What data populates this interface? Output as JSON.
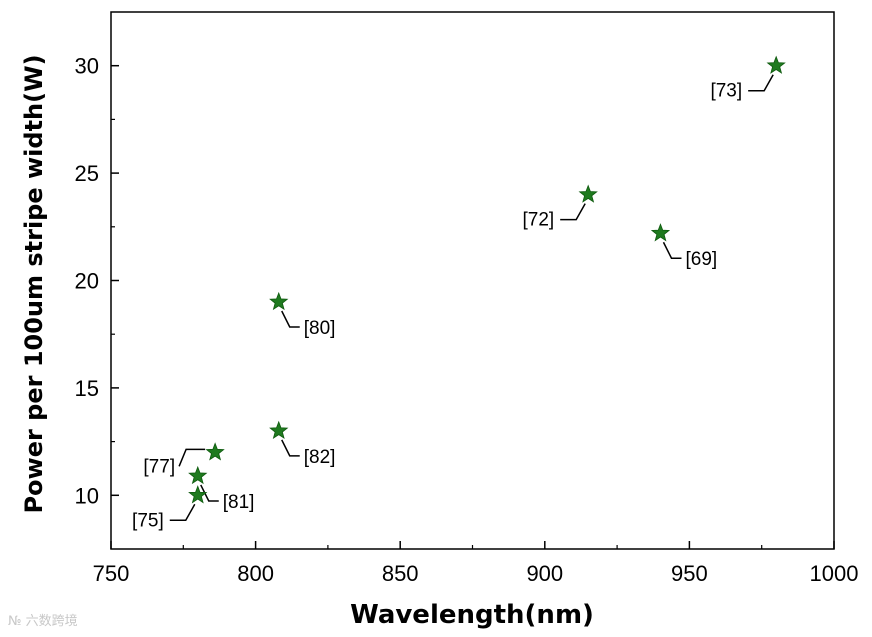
{
  "chart_data": {
    "type": "scatter",
    "xlabel": "Wavelength(nm)",
    "ylabel": "Power per 100um stripe width(W)",
    "xlim": [
      750,
      1000
    ],
    "ylim": [
      7.5,
      32.5
    ],
    "xticks": [
      750,
      800,
      850,
      900,
      950,
      1000
    ],
    "yticks": [
      10,
      15,
      20,
      25,
      30
    ],
    "grid": false,
    "legend": "none",
    "marker": "star",
    "marker_color": "#1f7a1f",
    "points": [
      {
        "x": 980,
        "y": 30,
        "label": "[73]",
        "label_side": "lower-left"
      },
      {
        "x": 915,
        "y": 24,
        "label": "[72]",
        "label_side": "lower-left"
      },
      {
        "x": 940,
        "y": 22.2,
        "label": "[69]",
        "label_side": "lower-right"
      },
      {
        "x": 808,
        "y": 19,
        "label": "[80]",
        "label_side": "lower-right"
      },
      {
        "x": 808,
        "y": 13,
        "label": "[82]",
        "label_side": "lower-right"
      },
      {
        "x": 786,
        "y": 12,
        "label": "[77]",
        "label_side": "left"
      },
      {
        "x": 780,
        "y": 10.9,
        "label": "[81]",
        "label_side": "lower-right"
      },
      {
        "x": 780,
        "y": 10,
        "label": "[75]",
        "label_side": "lower-left"
      }
    ]
  },
  "watermark": "№ 六数跨境"
}
